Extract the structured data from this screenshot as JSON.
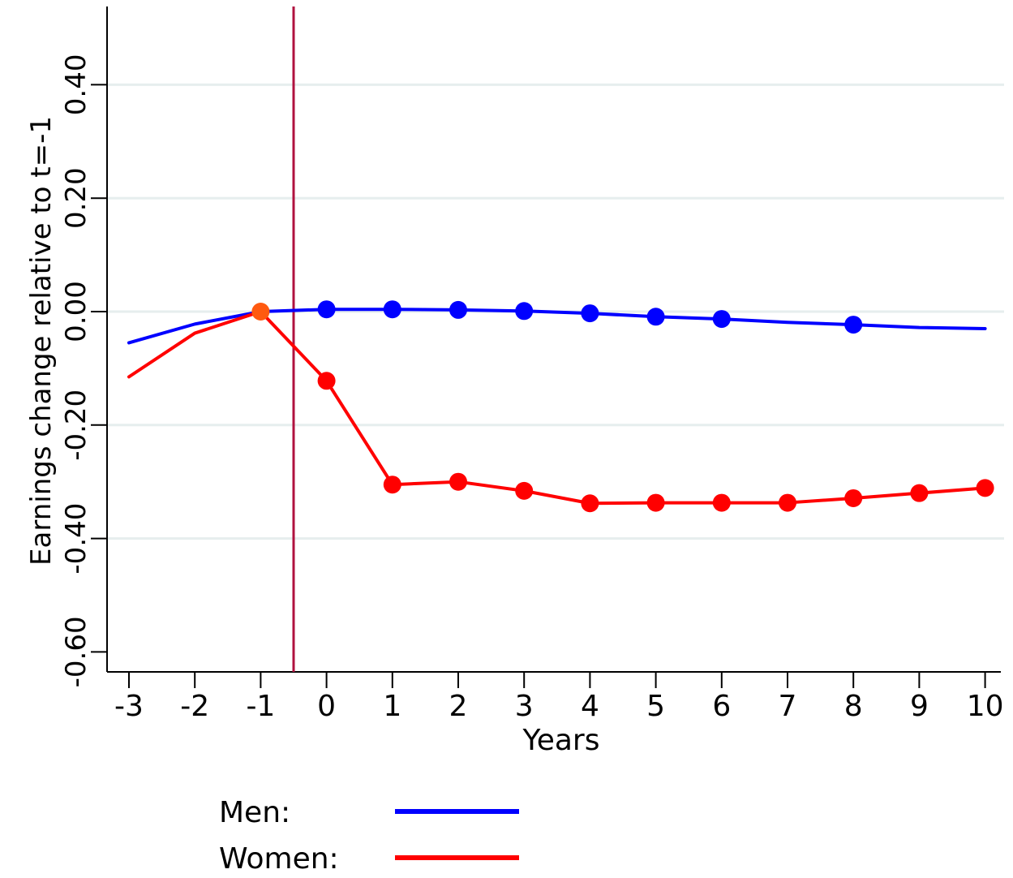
{
  "chart_data": {
    "type": "line",
    "xlabel": "Years",
    "ylabel": "Earnings change relative to t=-1",
    "x": [
      -3,
      -2,
      -1,
      0,
      1,
      2,
      3,
      4,
      5,
      6,
      7,
      8,
      9,
      10
    ],
    "xlim": [
      -3,
      10
    ],
    "ylim": [
      -0.6,
      0.4
    ],
    "x_ticks": [
      "-3",
      "-2",
      "-1",
      "0",
      "1",
      "2",
      "3",
      "4",
      "5",
      "6",
      "7",
      "8",
      "9",
      "10"
    ],
    "y_ticks": [
      {
        "value": 0.4,
        "label": "0.40"
      },
      {
        "value": 0.2,
        "label": "0.20"
      },
      {
        "value": 0.0,
        "label": "0.00"
      },
      {
        "value": -0.2,
        "label": "-0.20"
      },
      {
        "value": -0.4,
        "label": "-0.40"
      },
      {
        "value": -0.6,
        "label": "-0.60"
      }
    ],
    "grid": "horizontal",
    "event_line_x": -0.5,
    "series": [
      {
        "name": "Men",
        "legend_label": "Men:",
        "color": "#0000ff",
        "values": [
          -0.055,
          -0.022,
          0.0,
          0.004,
          0.004,
          0.003,
          0.001,
          -0.003,
          -0.009,
          -0.013,
          -0.019,
          -0.023,
          -0.028,
          -0.03
        ],
        "markers": [
          false,
          false,
          false,
          true,
          true,
          true,
          true,
          true,
          true,
          true,
          false,
          true,
          false,
          false
        ]
      },
      {
        "name": "Women",
        "legend_label": "Women:",
        "color": "#ff0000",
        "values": [
          -0.115,
          -0.038,
          0.0,
          -0.122,
          -0.305,
          -0.3,
          -0.316,
          -0.338,
          -0.337,
          -0.337,
          -0.337,
          -0.329,
          -0.32,
          -0.311
        ],
        "markers": [
          false,
          false,
          true,
          true,
          true,
          true,
          true,
          true,
          true,
          true,
          true,
          true,
          true,
          true
        ]
      }
    ],
    "colors": {
      "grid": "#e6eeee",
      "axis": "#000000",
      "event_line": "#b0123f",
      "reference_point": "#ff5a10"
    },
    "legend_position": "bottom"
  }
}
